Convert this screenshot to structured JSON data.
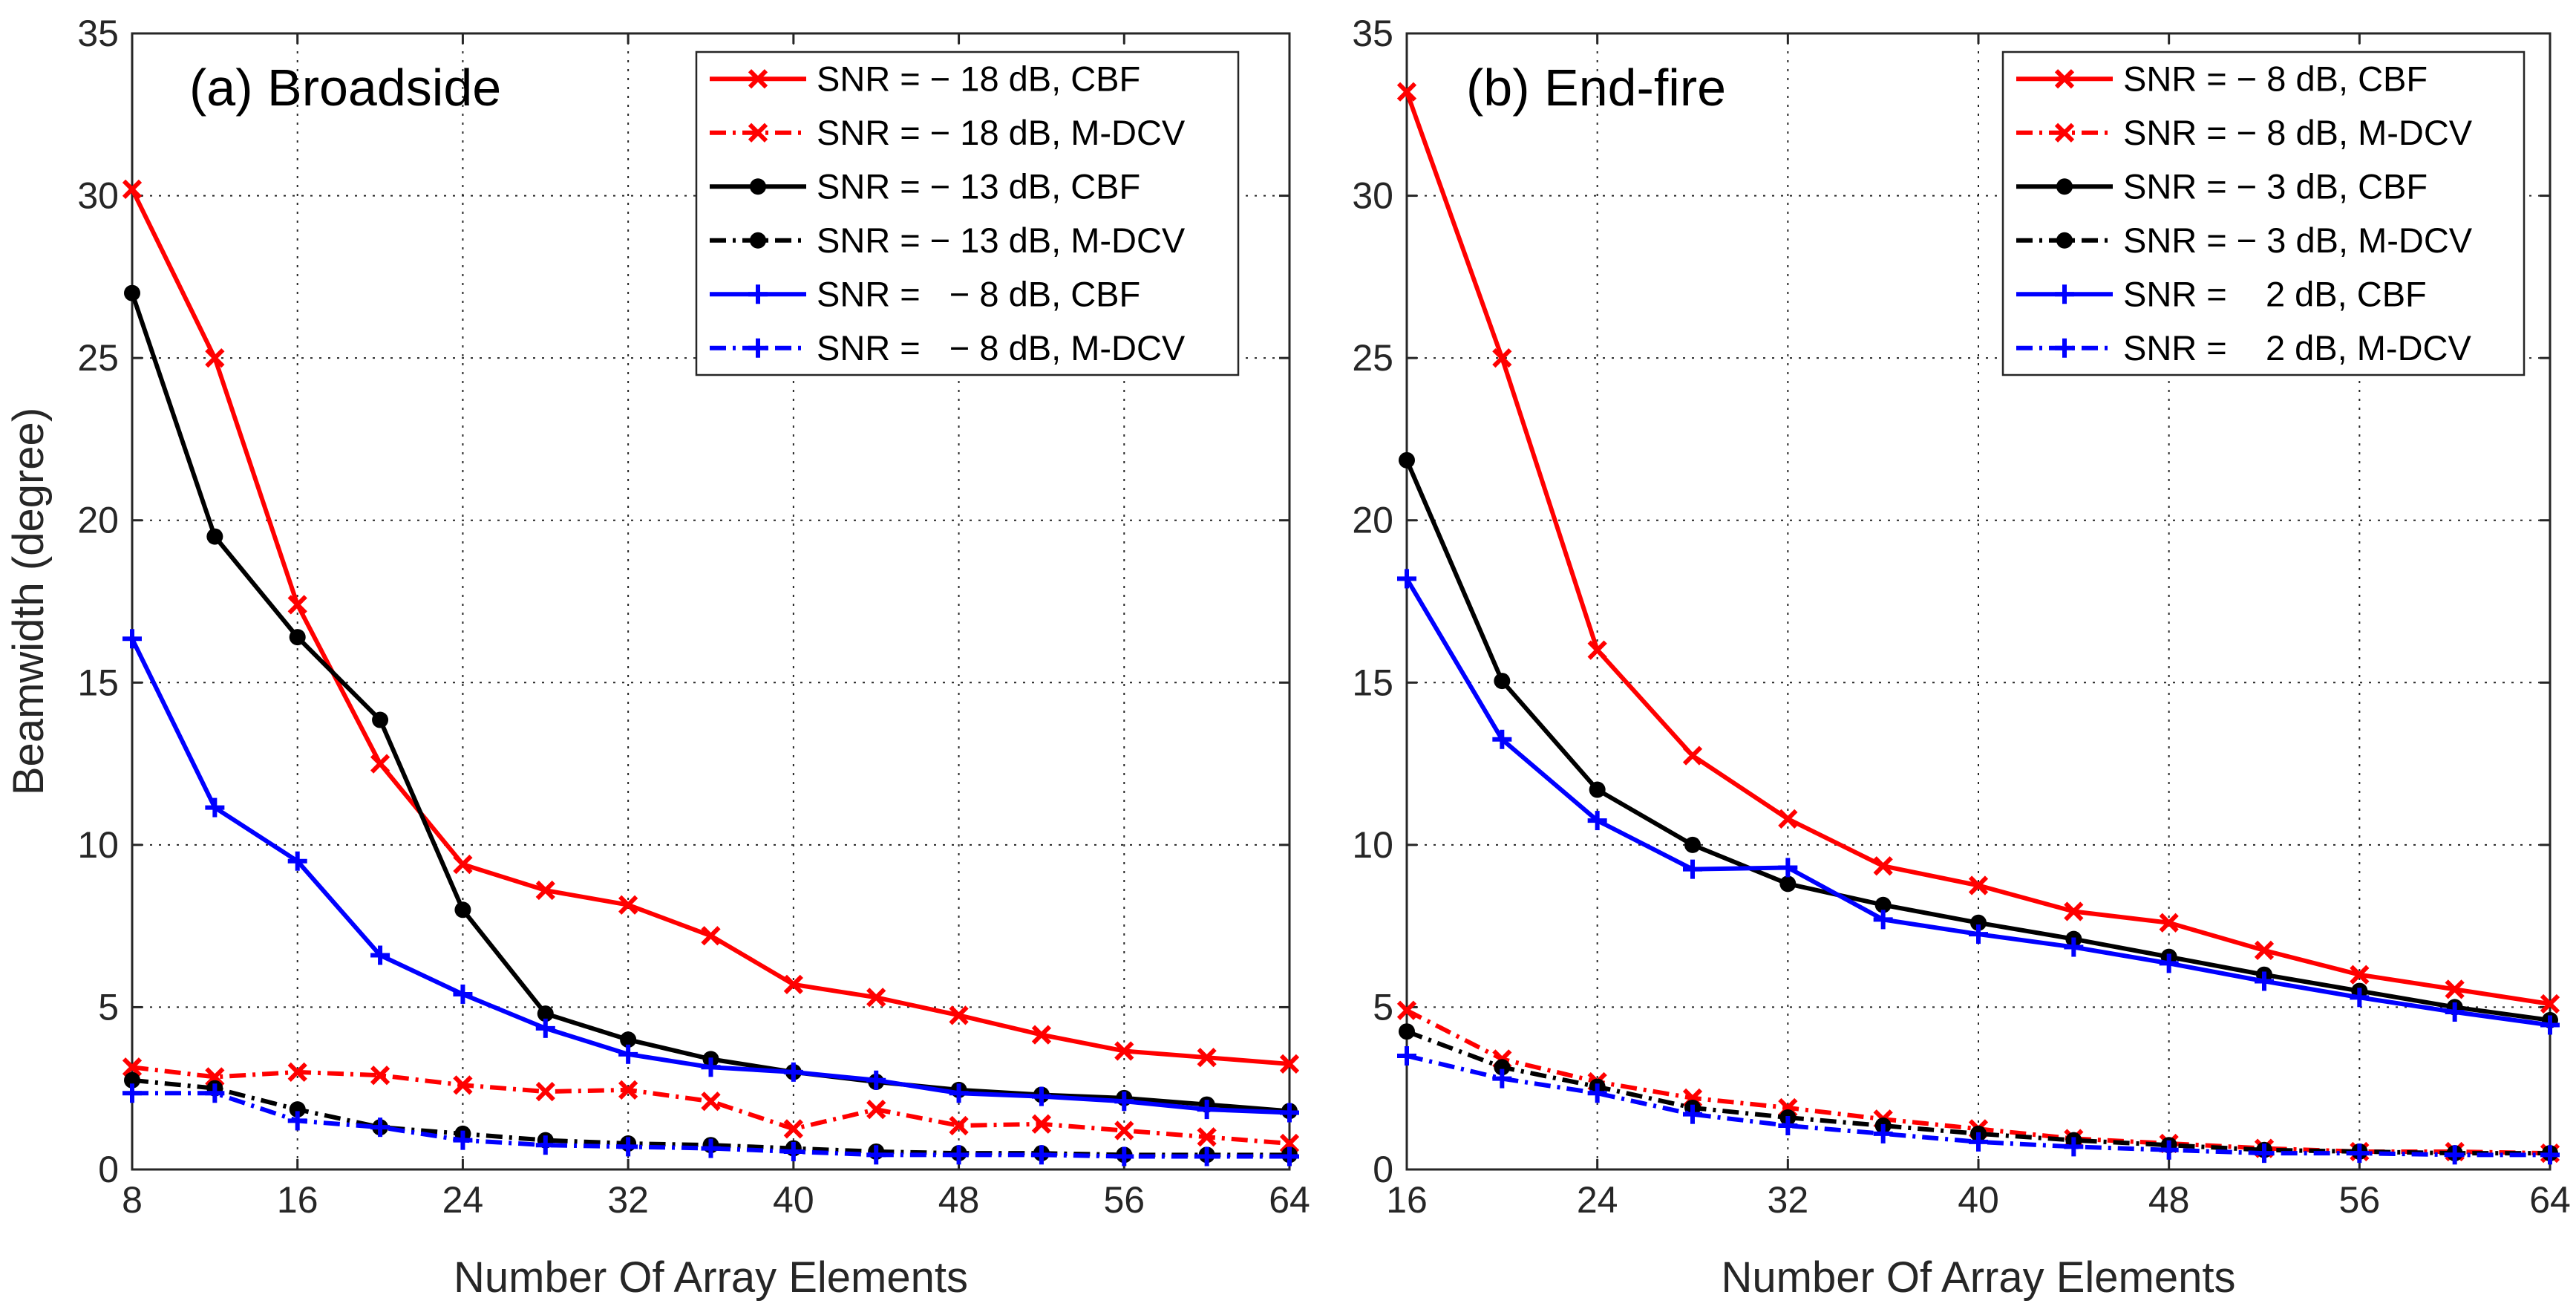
{
  "chart_data": [
    {
      "type": "line",
      "title": "(a) Broadside",
      "xlabel": "Number Of Array Elements",
      "ylabel": "Beamwidth (degree)",
      "xlim": [
        8,
        64
      ],
      "ylim": [
        0,
        35
      ],
      "xticks": [
        "8",
        "16",
        "24",
        "32",
        "40",
        "48",
        "56",
        "64"
      ],
      "yticks": [
        "0",
        "5",
        "10",
        "15",
        "20",
        "25",
        "30",
        "35"
      ],
      "grid": true,
      "legend_position": "top-right",
      "x": [
        8,
        12,
        16,
        20,
        24,
        28,
        32,
        36,
        40,
        44,
        48,
        52,
        56,
        60,
        64
      ],
      "series": [
        {
          "name": "SNR = − 18 dB, CBF",
          "color": "#ff0000",
          "line": "solid",
          "marker": "x",
          "values": [
            30.2,
            25.0,
            17.4,
            12.5,
            9.4,
            8.6,
            8.15,
            7.2,
            5.7,
            5.3,
            4.75,
            4.15,
            3.65,
            3.45,
            3.25
          ]
        },
        {
          "name": "SNR = − 18 dB, M-DCV",
          "color": "#ff0000",
          "line": "dashdot",
          "marker": "x",
          "values": [
            3.15,
            2.85,
            3.0,
            2.9,
            2.6,
            2.4,
            2.45,
            2.1,
            1.25,
            1.85,
            1.35,
            1.4,
            1.2,
            1.0,
            0.8
          ]
        },
        {
          "name": "SNR = − 13 dB, CBF",
          "color": "#000000",
          "line": "solid",
          "marker": "dot",
          "values": [
            27.0,
            19.5,
            16.4,
            13.85,
            8.0,
            4.8,
            4.0,
            3.4,
            3.0,
            2.7,
            2.45,
            2.3,
            2.2,
            2.0,
            1.8
          ]
        },
        {
          "name": "SNR = − 13 dB, M-DCV",
          "color": "#000000",
          "line": "dashdot",
          "marker": "dot",
          "values": [
            2.75,
            2.5,
            1.85,
            1.3,
            1.1,
            0.9,
            0.8,
            0.75,
            0.65,
            0.55,
            0.5,
            0.5,
            0.45,
            0.45,
            0.45
          ]
        },
        {
          "name": "SNR =   − 8 dB, CBF",
          "color": "#0000ff",
          "line": "solid",
          "marker": "plus",
          "values": [
            16.35,
            11.15,
            9.5,
            6.6,
            5.4,
            4.35,
            3.55,
            3.15,
            3.0,
            2.75,
            2.35,
            2.25,
            2.1,
            1.85,
            1.75
          ]
        },
        {
          "name": "SNR =   − 8 dB, M-DCV",
          "color": "#0000ff",
          "line": "dashdot",
          "marker": "plus",
          "values": [
            2.35,
            2.35,
            1.5,
            1.3,
            0.9,
            0.75,
            0.7,
            0.65,
            0.55,
            0.45,
            0.45,
            0.45,
            0.4,
            0.4,
            0.4
          ]
        }
      ]
    },
    {
      "type": "line",
      "title": "(b) End-fire",
      "xlabel": "Number Of Array Elements",
      "ylabel": "",
      "xlim": [
        16,
        64
      ],
      "ylim": [
        0,
        35
      ],
      "xticks": [
        "16",
        "24",
        "32",
        "40",
        "48",
        "56",
        "64"
      ],
      "yticks": [
        "0",
        "5",
        "10",
        "15",
        "20",
        "25",
        "30",
        "35"
      ],
      "grid": true,
      "legend_position": "top-right",
      "x": [
        16,
        20,
        24,
        28,
        32,
        36,
        40,
        44,
        48,
        52,
        56,
        60,
        64
      ],
      "series": [
        {
          "name": "SNR = − 8 dB, CBF",
          "color": "#ff0000",
          "line": "solid",
          "marker": "x",
          "values": [
            33.2,
            25.0,
            16.0,
            12.75,
            10.8,
            9.35,
            8.75,
            7.95,
            7.6,
            6.75,
            6.0,
            5.55,
            5.1
          ]
        },
        {
          "name": "SNR = − 8 dB, M-DCV",
          "color": "#ff0000",
          "line": "dashdot",
          "marker": "x",
          "values": [
            4.9,
            3.4,
            2.7,
            2.2,
            1.9,
            1.55,
            1.25,
            0.95,
            0.8,
            0.65,
            0.55,
            0.55,
            0.5
          ]
        },
        {
          "name": "SNR = − 3 dB, CBF",
          "color": "#000000",
          "line": "solid",
          "marker": "dot",
          "values": [
            21.85,
            15.05,
            11.7,
            10.0,
            8.8,
            8.15,
            7.6,
            7.1,
            6.55,
            6.0,
            5.5,
            5.0,
            4.6
          ]
        },
        {
          "name": "SNR = − 3 dB, M-DCV",
          "color": "#000000",
          "line": "dashdot",
          "marker": "dot",
          "values": [
            4.25,
            3.15,
            2.55,
            1.9,
            1.6,
            1.35,
            1.1,
            0.9,
            0.75,
            0.6,
            0.55,
            0.5,
            0.5
          ]
        },
        {
          "name": "SNR =    2 dB, CBF",
          "color": "#0000ff",
          "line": "solid",
          "marker": "plus",
          "values": [
            18.2,
            13.25,
            10.75,
            9.25,
            9.3,
            7.7,
            7.25,
            6.85,
            6.35,
            5.8,
            5.3,
            4.85,
            4.45
          ]
        },
        {
          "name": "SNR =    2 dB, M-DCV",
          "color": "#0000ff",
          "line": "dashdot",
          "marker": "plus",
          "values": [
            3.5,
            2.8,
            2.35,
            1.7,
            1.35,
            1.1,
            0.85,
            0.7,
            0.6,
            0.5,
            0.5,
            0.45,
            0.45
          ]
        }
      ]
    }
  ]
}
